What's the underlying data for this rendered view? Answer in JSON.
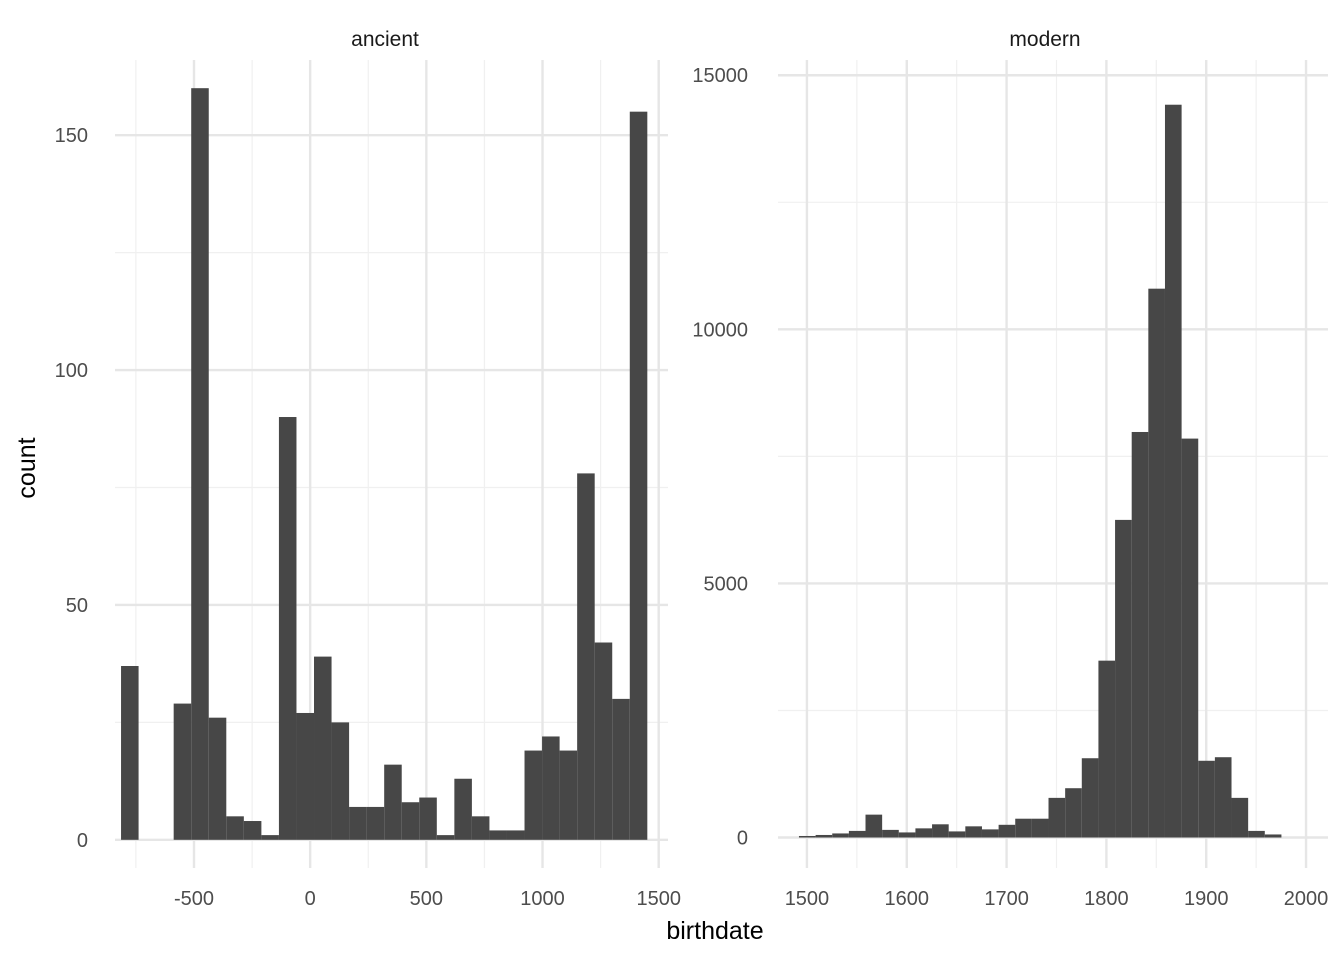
{
  "chart_data": {
    "type": "histogram",
    "facet": "era",
    "xlabel": "birthdate",
    "ylabel": "count",
    "grid": true,
    "bar_color": "#474747",
    "grid_major_color": "#e6e6e6",
    "grid_minor_color": "#f0f0f0",
    "panels": [
      {
        "name": "ancient",
        "xlim": [
          -840,
          1540
        ],
        "ylim": [
          -6,
          166
        ],
        "xticks": [
          -500,
          0,
          500,
          1000,
          1500
        ],
        "xtick_labels": [
          "-500",
          "0",
          "500",
          "1000",
          "1500"
        ],
        "yticks": [
          0,
          50,
          100,
          150
        ],
        "ytick_labels": [
          "0",
          "50",
          "100",
          "150"
        ],
        "yminor": [
          25,
          75,
          125
        ],
        "xminor": [
          -750,
          -250,
          250,
          750,
          1250
        ],
        "bin_width": 75.5,
        "bin_start": -814,
        "counts": [
          37,
          0,
          0,
          29,
          160,
          26,
          5,
          4,
          1,
          90,
          27,
          39,
          25,
          7,
          7,
          16,
          8,
          9,
          1,
          13,
          5,
          2,
          2,
          19,
          22,
          19,
          78,
          42,
          30,
          155
        ]
      },
      {
        "name": "modern",
        "xlim": [
          1471,
          2022
        ],
        "ylim": [
          -600,
          15300
        ],
        "xticks": [
          1500,
          1600,
          1700,
          1800,
          1900,
          2000
        ],
        "xtick_labels": [
          "1500",
          "1600",
          "1700",
          "1800",
          "1900",
          "2000"
        ],
        "yticks": [
          0,
          5000,
          10000,
          15000
        ],
        "ytick_labels": [
          "0",
          "5000",
          "10000",
          "15000"
        ],
        "yminor": [
          2500,
          7500,
          12500
        ],
        "xminor": [
          1550,
          1650,
          1750,
          1850,
          1950
        ],
        "bin_width": 16.667,
        "bin_start": 1492,
        "counts": [
          30,
          50,
          80,
          130,
          450,
          150,
          100,
          180,
          260,
          120,
          220,
          160,
          250,
          370,
          370,
          780,
          970,
          1560,
          3480,
          6250,
          7980,
          10800,
          14420,
          7850,
          1510,
          1580,
          780,
          130,
          60,
          0
        ]
      }
    ]
  }
}
